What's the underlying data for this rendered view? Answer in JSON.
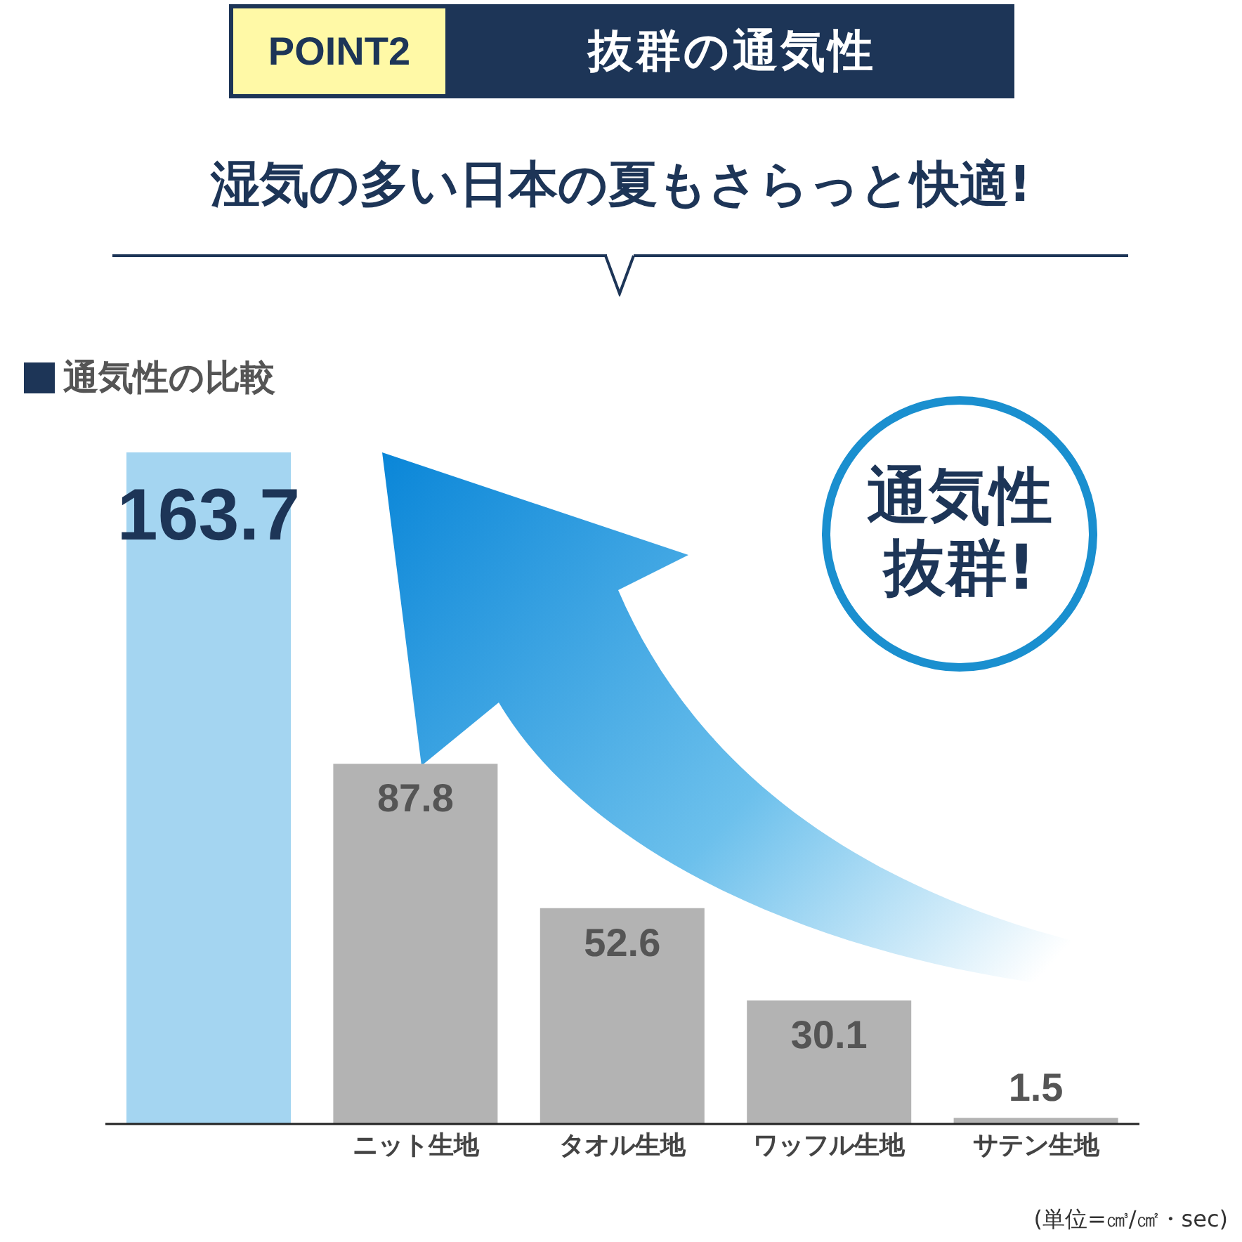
{
  "chart_data": {
    "type": "bar",
    "title": "抜群の通気性",
    "subtitle": "湿気の多い日本の夏もさらっと快適!",
    "annotations": [
      "POINT2",
      "通気性の比較",
      "通気性",
      "抜群!",
      "(単位=㎤/㎠・sec)"
    ],
    "categories": [
      null,
      "ニット生地",
      "タオル生地",
      "ワッフル生地",
      "サテン生地"
    ],
    "values": [
      163.7,
      87.8,
      52.6,
      30.1,
      1.5
    ],
    "colors": [
      "#a4d5f1",
      "#b3b3b3",
      "#b3b3b3",
      "#b3b3b3",
      "#b3b3b3"
    ],
    "data_labels": true,
    "legend": false,
    "grid": false
  }
}
